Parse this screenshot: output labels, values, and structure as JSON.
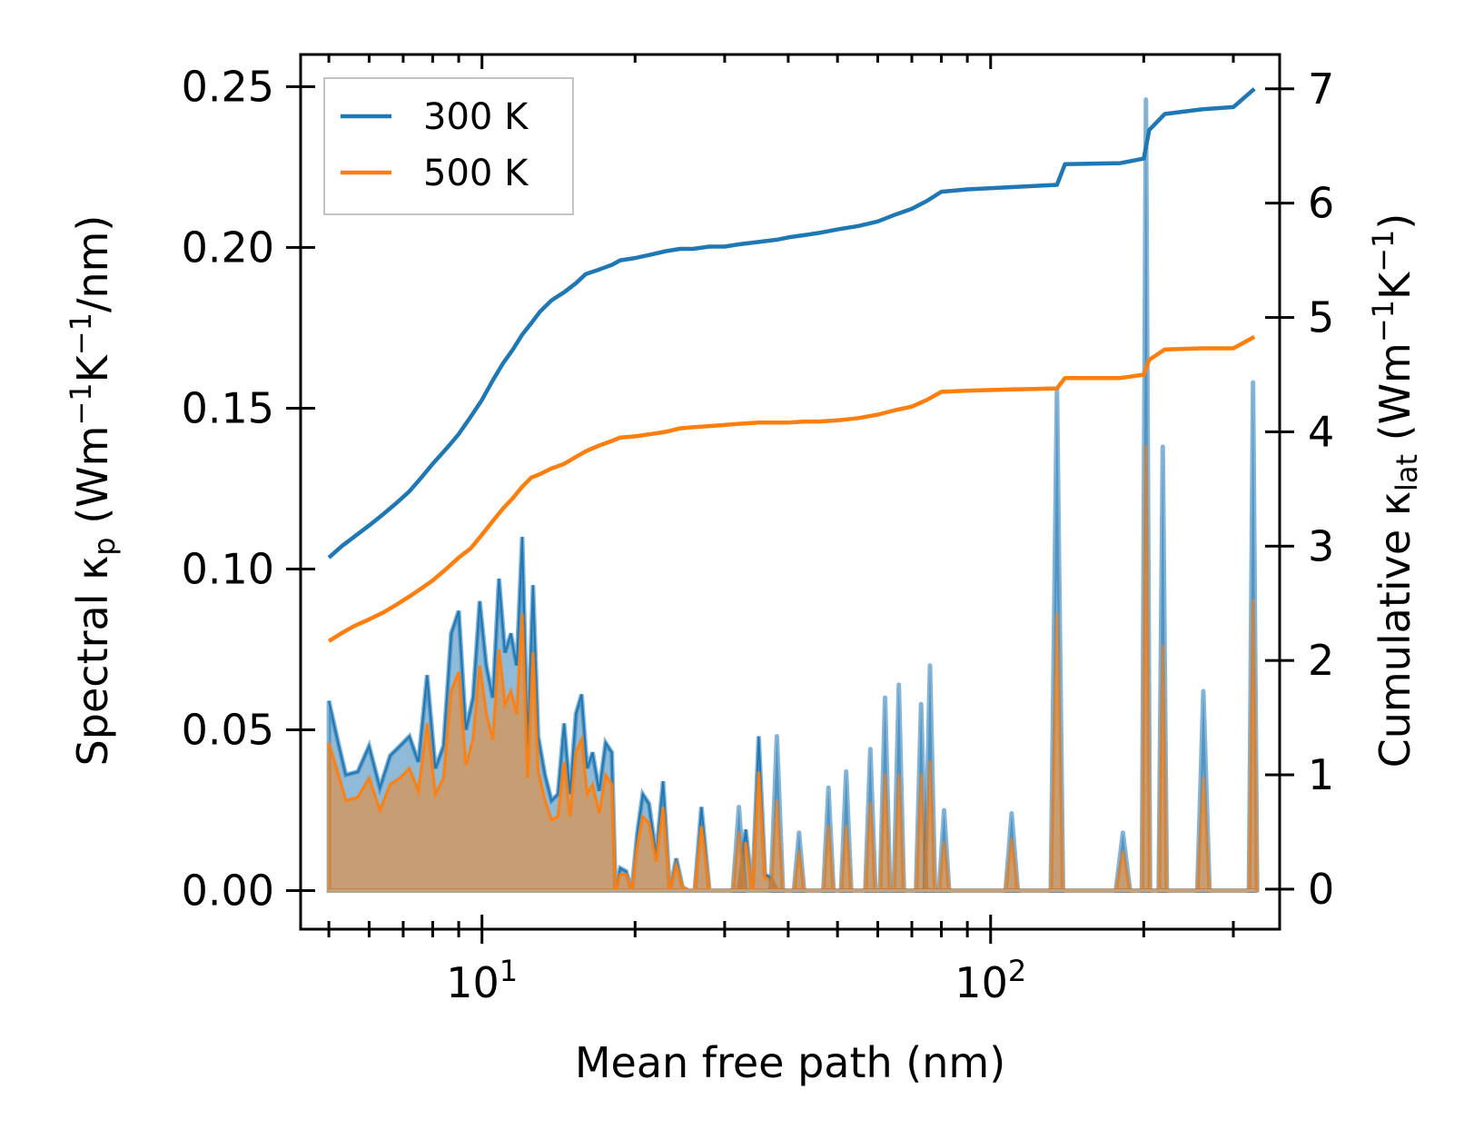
{
  "chart_data": {
    "type": "line",
    "xscale": "log",
    "xlabel": "Mean free path (nm)",
    "ylabel_left": {
      "main": "Spectral ",
      "kappa": "κ",
      "sub": "p",
      "rest": " (Wm",
      "e1": "−1",
      "mid": "K",
      "e2": "−1",
      "end": "/nm)"
    },
    "ylabel_right": {
      "main": "Cumulative ",
      "kappa": "κ",
      "sub": "lat",
      "rest": " (Wm",
      "e1": "−1",
      "mid": "K",
      "e2": "−1",
      "end": ")"
    },
    "xlim": [
      4.4,
      370
    ],
    "ylim_left": [
      -0.012,
      0.26
    ],
    "ylim_right": [
      -0.35,
      7.3
    ],
    "x_major_ticks": [
      {
        "value": 10,
        "base": "10",
        "exp": "1"
      },
      {
        "value": 100,
        "base": "10",
        "exp": "2"
      }
    ],
    "yticks_left": [
      {
        "value": 0.0,
        "label": "0.00"
      },
      {
        "value": 0.05,
        "label": "0.05"
      },
      {
        "value": 0.1,
        "label": "0.10"
      },
      {
        "value": 0.15,
        "label": "0.15"
      },
      {
        "value": 0.2,
        "label": "0.20"
      },
      {
        "value": 0.25,
        "label": "0.25"
      }
    ],
    "yticks_right": [
      {
        "value": 0,
        "label": "0"
      },
      {
        "value": 1,
        "label": "1"
      },
      {
        "value": 2,
        "label": "2"
      },
      {
        "value": 3,
        "label": "3"
      },
      {
        "value": 4,
        "label": "4"
      },
      {
        "value": 5,
        "label": "5"
      },
      {
        "value": 6,
        "label": "6"
      },
      {
        "value": 7,
        "label": "7"
      }
    ],
    "legend": {
      "placement": "top-left",
      "entries": [
        {
          "name": "300 K",
          "color": "#1f77b4"
        },
        {
          "name": "500 K",
          "color": "#ff7f0e"
        }
      ]
    },
    "series": [
      {
        "name": "300 K",
        "color": "#1f77b4",
        "cumulative": {
          "x": [
            5.0,
            5.3,
            5.6,
            6.0,
            6.4,
            6.8,
            7.2,
            7.6,
            8.0,
            8.5,
            9.0,
            9.5,
            10.0,
            10.5,
            11.0,
            11.5,
            12.0,
            12.5,
            13.0,
            13.7,
            14.5,
            15.3,
            16.0,
            17.0,
            18.0,
            18.7,
            20.0,
            21.5,
            23.0,
            24.5,
            26.0,
            28.0,
            30.0,
            32.0,
            35.0,
            38.0,
            40.0,
            43.0,
            46.0,
            50.0,
            55.0,
            60.0,
            65.0,
            70.0,
            75.0,
            80.0,
            90.0,
            110.0,
            135.0,
            140.0,
            180.0,
            200.0,
            205.0,
            220.0,
            260.0,
            300.0,
            330.0
          ],
          "y": [
            2.9,
            3.0,
            3.08,
            3.18,
            3.28,
            3.38,
            3.48,
            3.6,
            3.72,
            3.85,
            3.98,
            4.13,
            4.28,
            4.45,
            4.6,
            4.72,
            4.85,
            4.95,
            5.05,
            5.15,
            5.22,
            5.3,
            5.38,
            5.42,
            5.46,
            5.5,
            5.52,
            5.55,
            5.58,
            5.6,
            5.6,
            5.62,
            5.62,
            5.64,
            5.66,
            5.68,
            5.7,
            5.72,
            5.74,
            5.77,
            5.8,
            5.84,
            5.9,
            5.95,
            6.02,
            6.1,
            6.12,
            6.14,
            6.16,
            6.34,
            6.35,
            6.39,
            6.64,
            6.78,
            6.82,
            6.84,
            7.0
          ]
        },
        "spectral": {
          "x": [
            5.0,
            5.2,
            5.4,
            5.7,
            6.0,
            6.3,
            6.6,
            6.9,
            7.2,
            7.5,
            7.8,
            8.1,
            8.4,
            8.7,
            9.0,
            9.3,
            9.6,
            9.9,
            10.2,
            10.5,
            10.8,
            11.1,
            11.4,
            11.7,
            12.0,
            12.3,
            12.6,
            12.9,
            13.3,
            13.7,
            14.1,
            14.5,
            14.9,
            15.3,
            15.7,
            16.1,
            16.5,
            17.0,
            17.5,
            18.0,
            18.3,
            18.7,
            19.2,
            19.7,
            20.2,
            20.7,
            21.3,
            22.0,
            22.7,
            23.4,
            24.1,
            24.8,
            25.5,
            26.2,
            27.0,
            28.0,
            29.0,
            30.0,
            31.0,
            32.0,
            33.0,
            34.0,
            35.0,
            36.0,
            37.0,
            38.0,
            39.0,
            40.0,
            41.0,
            42.0,
            43.0,
            44.0,
            45.0,
            46.0,
            47.0,
            48.0,
            49.0,
            50.0,
            51.0,
            52.0,
            54.0,
            56.0,
            58.0,
            60.0,
            62.0,
            64.0,
            66.0,
            68.0,
            70.0,
            72.0,
            74.0,
            76.0,
            78.0,
            80.0,
            82.0,
            100.0,
            110.0,
            113.0,
            132.0,
            135.0,
            138.0,
            180.0,
            188.0,
            196.0,
            200.0,
            205.0,
            212.0,
            218.0,
            224.0,
            255.0,
            262.0,
            270.0,
            320.0,
            326.0,
            332.0
          ],
          "y300": [
            0.059,
            0.047,
            0.036,
            0.037,
            0.045,
            0.032,
            0.042,
            0.045,
            0.048,
            0.04,
            0.067,
            0.038,
            0.045,
            0.08,
            0.087,
            0.05,
            0.06,
            0.09,
            0.07,
            0.06,
            0.097,
            0.074,
            0.08,
            0.07,
            0.11,
            0.045,
            0.095,
            0.048,
            0.036,
            0.028,
            0.03,
            0.052,
            0.03,
            0.055,
            0.061,
            0.038,
            0.043,
            0.031,
            0.046,
            0.043,
            0.0,
            0.007,
            0.006,
            0.0,
            0.018,
            0.03,
            0.027,
            0.011,
            0.034,
            0.0,
            0.01,
            0.001,
            0.0,
            0.0,
            0.026,
            0.0,
            0.0,
            0.0,
            0.0,
            0.0,
            0.019,
            0.0,
            0.048,
            0.005,
            0.004,
            0.0,
            0.0,
            0.0,
            0.0,
            0.0,
            0.0,
            0.0,
            0.0,
            0.0,
            0.0,
            0.0,
            0.0,
            0.0,
            0.0,
            0.0,
            0.0,
            0.0,
            0.0,
            0.0,
            0.0,
            0.0,
            0.0,
            0.0,
            0.0,
            0.0,
            0.0,
            0.0,
            0.0,
            0.0,
            0.0,
            0.0,
            0.0,
            0.0,
            0.0,
            0.0,
            0.0,
            0.0,
            0.0,
            0.0,
            0.0,
            0.0,
            0.0,
            0.0,
            0.0,
            0.0,
            0.0,
            0.0,
            0.0,
            0.0,
            0.0
          ],
          "y500": [
            0.046,
            0.037,
            0.028,
            0.029,
            0.035,
            0.025,
            0.033,
            0.035,
            0.038,
            0.031,
            0.052,
            0.03,
            0.035,
            0.062,
            0.068,
            0.039,
            0.047,
            0.07,
            0.055,
            0.047,
            0.075,
            0.058,
            0.062,
            0.055,
            0.086,
            0.035,
            0.074,
            0.037,
            0.028,
            0.022,
            0.023,
            0.04,
            0.023,
            0.043,
            0.047,
            0.03,
            0.033,
            0.024,
            0.036,
            0.033,
            0.0,
            0.005,
            0.005,
            0.0,
            0.014,
            0.023,
            0.021,
            0.009,
            0.026,
            0.0,
            0.008,
            0.001,
            0.0,
            0.0,
            0.02,
            0.0,
            0.0,
            0.0,
            0.0,
            0.0,
            0.015,
            0.0,
            0.037,
            0.004,
            0.003,
            0.0,
            0.0,
            0.0,
            0.0,
            0.0,
            0.0,
            0.0,
            0.0,
            0.0,
            0.0,
            0.0,
            0.0,
            0.0,
            0.0,
            0.0,
            0.0,
            0.0,
            0.0,
            0.0,
            0.0,
            0.0,
            0.0,
            0.0,
            0.0,
            0.0,
            0.0,
            0.0,
            0.0,
            0.0,
            0.0,
            0.0,
            0.0,
            0.0,
            0.0,
            0.0,
            0.0,
            0.0,
            0.0,
            0.0,
            0.0,
            0.0,
            0.0,
            0.0,
            0.0,
            0.0,
            0.0,
            0.0,
            0.0,
            0.0,
            0.0
          ]
        }
      },
      {
        "name": "500 K",
        "color": "#ff7f0e",
        "cumulative": {
          "x": [
            5.0,
            5.3,
            5.6,
            6.0,
            6.4,
            6.8,
            7.2,
            7.6,
            8.0,
            8.5,
            9.0,
            9.5,
            10.0,
            10.5,
            11.0,
            11.5,
            12.0,
            12.5,
            13.0,
            13.7,
            14.5,
            15.3,
            16.0,
            17.0,
            18.0,
            18.7,
            20.0,
            21.5,
            23.0,
            24.5,
            26.0,
            28.0,
            30.0,
            32.0,
            35.0,
            38.0,
            40.0,
            43.0,
            46.0,
            50.0,
            55.0,
            60.0,
            65.0,
            70.0,
            75.0,
            80.0,
            90.0,
            110.0,
            135.0,
            140.0,
            180.0,
            200.0,
            205.0,
            220.0,
            260.0,
            300.0,
            330.0
          ],
          "y": [
            2.17,
            2.24,
            2.3,
            2.36,
            2.42,
            2.49,
            2.56,
            2.63,
            2.7,
            2.8,
            2.9,
            2.98,
            3.1,
            3.22,
            3.33,
            3.42,
            3.52,
            3.6,
            3.63,
            3.68,
            3.72,
            3.78,
            3.83,
            3.88,
            3.92,
            3.95,
            3.96,
            3.98,
            4.0,
            4.03,
            4.04,
            4.05,
            4.06,
            4.07,
            4.08,
            4.08,
            4.08,
            4.09,
            4.09,
            4.1,
            4.12,
            4.15,
            4.19,
            4.22,
            4.28,
            4.35,
            4.36,
            4.37,
            4.38,
            4.47,
            4.47,
            4.5,
            4.63,
            4.72,
            4.73,
            4.73,
            4.83
          ]
        }
      }
    ],
    "spikes": [
      {
        "x": 110.0,
        "y300": 0.024,
        "y500": 0.016,
        "w": 0.012
      },
      {
        "x": 135.0,
        "y300": 0.156,
        "y500": 0.086,
        "w": 0.012
      },
      {
        "x": 182.0,
        "y300": 0.018,
        "y500": 0.012,
        "w": 0.014
      },
      {
        "x": 202.0,
        "y300": 0.246,
        "y500": 0.138,
        "w": 0.008
      },
      {
        "x": 218.0,
        "y300": 0.138,
        "y500": 0.076,
        "w": 0.008
      },
      {
        "x": 262.0,
        "y300": 0.062,
        "y500": 0.035,
        "w": 0.012
      },
      {
        "x": 328.0,
        "y300": 0.158,
        "y500": 0.09,
        "w": 0.008
      },
      {
        "x": 38.0,
        "y300": 0.048,
        "y500": 0.028,
        "w": 0.012
      },
      {
        "x": 32.0,
        "y300": 0.026,
        "y500": 0.018,
        "w": 0.012
      },
      {
        "x": 42.0,
        "y300": 0.018,
        "y500": 0.012,
        "w": 0.01
      },
      {
        "x": 48.0,
        "y300": 0.032,
        "y500": 0.02,
        "w": 0.01
      },
      {
        "x": 52.0,
        "y300": 0.037,
        "y500": 0.02,
        "w": 0.01
      },
      {
        "x": 58.0,
        "y300": 0.044,
        "y500": 0.027,
        "w": 0.01
      },
      {
        "x": 62.0,
        "y300": 0.06,
        "y500": 0.036,
        "w": 0.01
      },
      {
        "x": 66.0,
        "y300": 0.064,
        "y500": 0.036,
        "w": 0.01
      },
      {
        "x": 73.0,
        "y300": 0.058,
        "y500": 0.036,
        "w": 0.01
      },
      {
        "x": 76.0,
        "y300": 0.07,
        "y500": 0.04,
        "w": 0.01
      },
      {
        "x": 81.0,
        "y300": 0.025,
        "y500": 0.015,
        "w": 0.01
      }
    ]
  }
}
